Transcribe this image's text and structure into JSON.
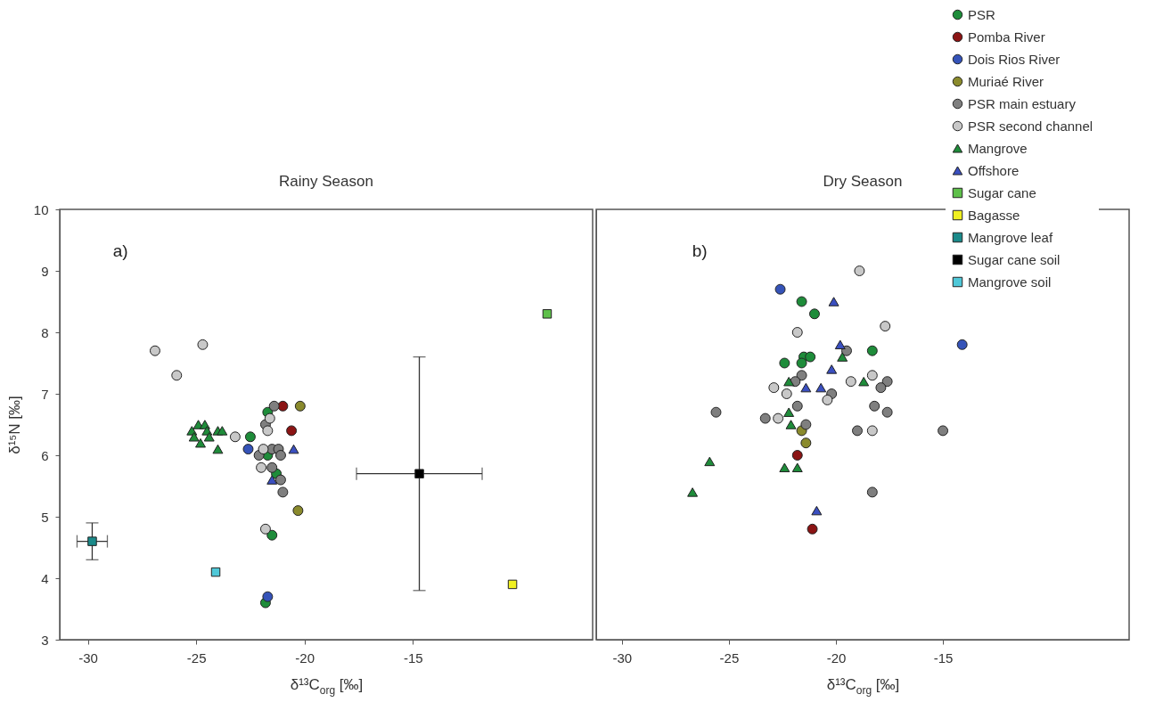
{
  "chart_data": [
    {
      "type": "scatter",
      "title": "Rainy Season",
      "xlabel": "δ¹³C$_{org}$ [‰]",
      "ylabel": "δ¹⁵N [‰]",
      "annotations": [
        "a)"
      ],
      "xlim": [
        -31.3,
        -6.7
      ],
      "ylim": [
        3,
        10
      ],
      "xticks": [
        -30,
        -25,
        -20,
        -15
      ],
      "yticks": [
        3,
        4,
        5,
        6,
        7,
        8,
        9,
        10
      ],
      "legend": "top right",
      "grid": false,
      "series": [
        {
          "name": "PSR",
          "color": "#1e8c3a",
          "marker": "circle",
          "x": [
            -21.7,
            -22.5,
            -21.5,
            -21.7,
            -21.3,
            -21.8
          ],
          "values": [
            6.7,
            6.3,
            4.7,
            6.0,
            5.7,
            3.6
          ]
        },
        {
          "name": "Pomba River",
          "color": "#8b1414",
          "marker": "circle",
          "x": [
            -21.0,
            -20.6
          ],
          "values": [
            6.8,
            6.4
          ]
        },
        {
          "name": "Dois Rios River",
          "color": "#3553b8",
          "marker": "circle",
          "x": [
            -22.6,
            -21.7
          ],
          "values": [
            6.1,
            3.7
          ]
        },
        {
          "name": "Muriaé River",
          "color": "#8a8a2c",
          "marker": "circle",
          "x": [
            -20.2,
            -20.3
          ],
          "values": [
            6.8,
            5.1
          ]
        },
        {
          "name": "PSR main estuary",
          "color": "#7f7f7f",
          "marker": "circle",
          "x": [
            -21.4,
            -21.8,
            -21.5,
            -21.2,
            -21.1,
            -22.1,
            -21.5,
            -21.1,
            -21.0
          ],
          "values": [
            6.8,
            6.5,
            6.1,
            6.1,
            6.0,
            6.0,
            5.8,
            5.6,
            5.4
          ]
        },
        {
          "name": "PSR second channel",
          "color": "#c8c8c8",
          "marker": "circle",
          "x": [
            -26.9,
            -24.7,
            -25.9,
            -23.2,
            -21.6,
            -21.7,
            -21.9,
            -22.0,
            -21.8
          ],
          "values": [
            7.7,
            7.8,
            7.3,
            6.3,
            6.6,
            6.4,
            6.1,
            5.8,
            4.8
          ]
        },
        {
          "name": "Mangrove",
          "color": "#1e8c3a",
          "marker": "triangle",
          "x": [
            -25.2,
            -24.9,
            -24.6,
            -24.5,
            -25.1,
            -24.8,
            -24.4,
            -24.0,
            -23.8,
            -24.0
          ],
          "values": [
            6.4,
            6.5,
            6.5,
            6.4,
            6.3,
            6.2,
            6.3,
            6.4,
            6.4,
            6.1
          ]
        },
        {
          "name": "Offshore",
          "color": "#3a4fc0",
          "marker": "triangle",
          "x": [
            -20.5,
            -21.5
          ],
          "values": [
            6.1,
            5.6
          ]
        },
        {
          "name": "Sugar cane",
          "color": "#5ec04a",
          "marker": "square",
          "x": [
            -8.8
          ],
          "values": [
            8.3
          ]
        },
        {
          "name": "Bagasse",
          "color": "#f0f020",
          "marker": "square",
          "x": [
            -10.4
          ],
          "values": [
            3.9
          ]
        },
        {
          "name": "Mangrove leaf",
          "color": "#1a8a8a",
          "marker": "square",
          "x": [
            -29.8
          ],
          "values": [
            4.6
          ],
          "errors": [
            0.3
          ],
          "xerrors": [
            0.7
          ]
        },
        {
          "name": "Sugar cane soil",
          "color": "#000000",
          "marker": "square",
          "x": [
            -14.7
          ],
          "values": [
            5.7
          ],
          "errors": [
            1.9
          ],
          "xerrors": [
            2.9
          ]
        },
        {
          "name": "Mangrove soil",
          "color": "#4fc8d8",
          "marker": "square",
          "x": [
            -24.1
          ],
          "values": [
            4.1
          ]
        }
      ]
    },
    {
      "type": "scatter",
      "title": "Dry Season",
      "xlabel": "δ¹³C$_{org}$ [‰]",
      "annotations": [
        "b)"
      ],
      "xlim": [
        -31.2,
        -6.3
      ],
      "ylim": [
        3,
        10
      ],
      "xticks": [
        -30,
        -25,
        -20,
        -15
      ],
      "yticks": [
        3,
        4,
        5,
        6,
        7,
        8,
        9,
        10
      ],
      "tick_labels": "x",
      "legend": "top right",
      "grid": false,
      "series": [
        {
          "name": "PSR",
          "color": "#1e8c3a",
          "marker": "circle",
          "x": [
            -21.6,
            -21.0,
            -18.3,
            -21.5,
            -21.2,
            -21.6,
            -22.4
          ],
          "values": [
            8.5,
            8.3,
            7.7,
            7.6,
            7.6,
            7.5,
            7.5
          ]
        },
        {
          "name": "Pomba River",
          "color": "#8b1414",
          "marker": "circle",
          "x": [
            -21.8,
            -21.1
          ],
          "values": [
            6.0,
            4.8
          ]
        },
        {
          "name": "Dois Rios River",
          "color": "#3553b8",
          "marker": "circle",
          "x": [
            -22.6,
            -14.1
          ],
          "values": [
            8.7,
            7.8
          ]
        },
        {
          "name": "Muriaé River",
          "color": "#8a8a2c",
          "marker": "circle",
          "x": [
            -21.6,
            -21.4
          ],
          "values": [
            6.4,
            6.2
          ]
        },
        {
          "name": "PSR main estuary",
          "color": "#7f7f7f",
          "marker": "circle",
          "x": [
            -19.5,
            -21.6,
            -21.9,
            -20.2,
            -17.6,
            -17.9,
            -21.8,
            -18.2,
            -17.6,
            -25.6,
            -23.3,
            -21.4,
            -19.0,
            -15.0,
            -18.3
          ],
          "values": [
            7.7,
            7.3,
            7.2,
            7.0,
            7.2,
            7.1,
            6.8,
            6.8,
            6.7,
            6.7,
            6.6,
            6.5,
            6.4,
            6.4,
            5.4
          ]
        },
        {
          "name": "PSR second channel",
          "color": "#c8c8c8",
          "marker": "circle",
          "x": [
            -18.9,
            -17.7,
            -21.8,
            -18.3,
            -19.3,
            -22.9,
            -22.3,
            -20.4,
            -22.7,
            -18.3
          ],
          "values": [
            9.0,
            8.1,
            8.0,
            7.3,
            7.2,
            7.1,
            7.0,
            6.9,
            6.6,
            6.4
          ]
        },
        {
          "name": "Mangrove",
          "color": "#1e8c3a",
          "marker": "triangle",
          "x": [
            -19.7,
            -22.2,
            -18.7,
            -22.2,
            -22.1,
            -22.4,
            -21.8,
            -25.9,
            -26.7
          ],
          "values": [
            7.6,
            7.2,
            7.2,
            6.7,
            6.5,
            5.8,
            5.8,
            5.9,
            5.4
          ]
        },
        {
          "name": "Offshore",
          "color": "#3a4fc0",
          "marker": "triangle",
          "x": [
            -20.1,
            -19.8,
            -20.2,
            -21.4,
            -20.7,
            -20.9
          ],
          "values": [
            8.5,
            7.8,
            7.4,
            7.1,
            7.1,
            5.1
          ]
        }
      ]
    }
  ]
}
